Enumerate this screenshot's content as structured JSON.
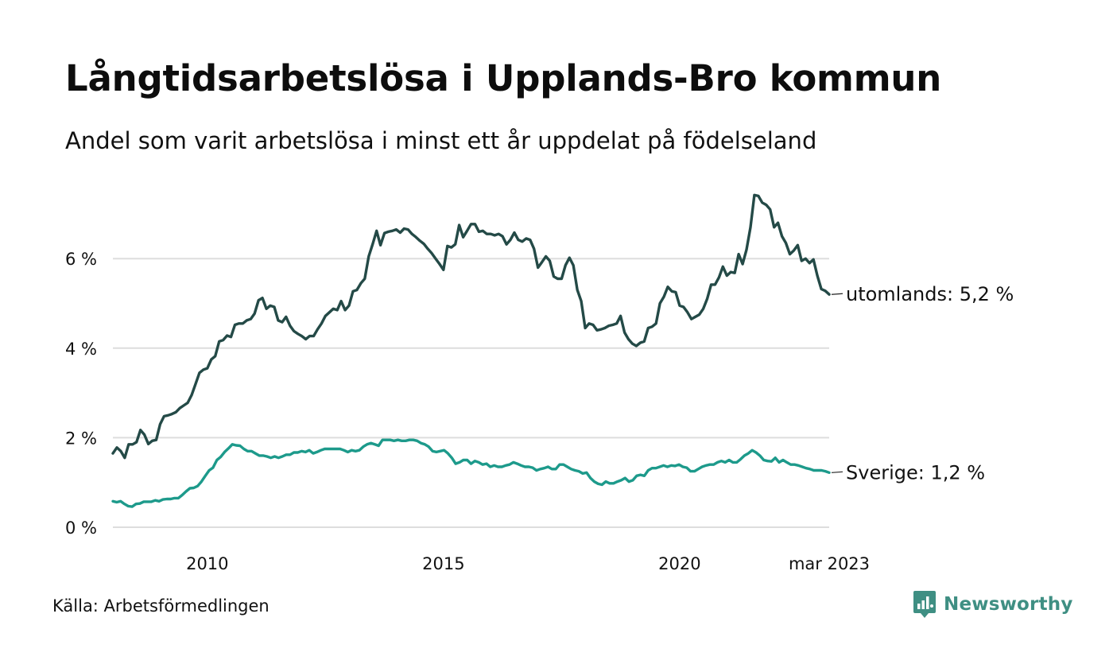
{
  "title": "Långtidsarbetslösa i Upplands-Bro kommun",
  "subtitle": "Andel som varit arbetslösa i minst ett år uppdelat på födelseland",
  "source": "Källa: Arbetsförmedlingen",
  "brand": {
    "name": "Newsworthy",
    "logo_icon": "bar-chart-speech-bubble-icon",
    "color": "#3f8f83"
  },
  "chart_data": {
    "type": "line",
    "title": "Långtidsarbetslösa i Upplands-Bro kommun",
    "subtitle": "Andel som varit arbetslösa i minst ett år uppdelat på födelseland",
    "ylabel": "",
    "xlabel": "",
    "ylim": [
      0,
      7.5
    ],
    "y_ticks": [
      0,
      2,
      4,
      6
    ],
    "y_tick_labels": [
      "0 %",
      "2 %",
      "4 %",
      "6 %"
    ],
    "x_start": 2008.0,
    "x_end": 2023.167,
    "x_ticks": [
      2010,
      2015,
      2020,
      2023.167
    ],
    "x_tick_labels": [
      "2010",
      "2015",
      "2020",
      "mar 2023"
    ],
    "grid": "horizontal",
    "legend": "end-of-line labels",
    "series": [
      {
        "name": "utomlands",
        "end_label": "utomlands: 5,2 %",
        "color": "#244a47",
        "values": [
          1.65,
          1.78,
          1.7,
          1.55,
          1.85,
          1.85,
          1.9,
          2.17,
          2.07,
          1.86,
          1.93,
          1.95,
          2.3,
          2.48,
          2.5,
          2.53,
          2.57,
          2.66,
          2.72,
          2.78,
          2.95,
          3.2,
          3.45,
          3.52,
          3.55,
          3.75,
          3.82,
          4.15,
          4.18,
          4.28,
          4.25,
          4.52,
          4.55,
          4.55,
          4.62,
          4.65,
          4.77,
          5.07,
          5.12,
          4.88,
          4.95,
          4.92,
          4.62,
          4.58,
          4.7,
          4.5,
          4.38,
          4.32,
          4.27,
          4.2,
          4.27,
          4.27,
          4.42,
          4.55,
          4.72,
          4.8,
          4.88,
          4.85,
          5.05,
          4.85,
          4.95,
          5.27,
          5.3,
          5.45,
          5.55,
          6.05,
          6.32,
          6.62,
          6.3,
          6.57,
          6.6,
          6.62,
          6.65,
          6.58,
          6.67,
          6.65,
          6.55,
          6.48,
          6.4,
          6.33,
          6.22,
          6.12,
          6.0,
          5.88,
          5.75,
          6.28,
          6.25,
          6.32,
          6.75,
          6.48,
          6.62,
          6.77,
          6.77,
          6.6,
          6.62,
          6.55,
          6.55,
          6.52,
          6.55,
          6.5,
          6.32,
          6.42,
          6.58,
          6.42,
          6.38,
          6.45,
          6.42,
          6.22,
          5.8,
          5.92,
          6.05,
          5.95,
          5.6,
          5.55,
          5.55,
          5.85,
          6.02,
          5.85,
          5.3,
          5.05,
          4.45,
          4.55,
          4.52,
          4.4,
          4.42,
          4.45,
          4.5,
          4.52,
          4.55,
          4.72,
          4.35,
          4.2,
          4.1,
          4.05,
          4.12,
          4.15,
          4.45,
          4.48,
          4.55,
          5.0,
          5.15,
          5.37,
          5.27,
          5.25,
          4.95,
          4.92,
          4.8,
          4.65,
          4.7,
          4.75,
          4.88,
          5.1,
          5.42,
          5.42,
          5.58,
          5.82,
          5.62,
          5.7,
          5.68,
          6.1,
          5.88,
          6.2,
          6.7,
          7.42,
          7.4,
          7.25,
          7.2,
          7.1,
          6.7,
          6.8,
          6.5,
          6.35,
          6.1,
          6.18,
          6.3,
          5.95,
          6.0,
          5.9,
          5.98,
          5.62,
          5.32,
          5.28,
          5.2
        ]
      },
      {
        "name": "Sverige",
        "end_label": "Sverige: 1,2 %",
        "color": "#1d9a8b",
        "values": [
          0.58,
          0.56,
          0.58,
          0.52,
          0.47,
          0.46,
          0.52,
          0.53,
          0.57,
          0.57,
          0.57,
          0.6,
          0.58,
          0.62,
          0.63,
          0.63,
          0.65,
          0.65,
          0.72,
          0.8,
          0.87,
          0.88,
          0.92,
          1.02,
          1.15,
          1.27,
          1.33,
          1.5,
          1.57,
          1.68,
          1.76,
          1.85,
          1.83,
          1.82,
          1.75,
          1.7,
          1.7,
          1.65,
          1.6,
          1.6,
          1.58,
          1.55,
          1.58,
          1.55,
          1.58,
          1.62,
          1.62,
          1.67,
          1.67,
          1.7,
          1.68,
          1.72,
          1.65,
          1.68,
          1.72,
          1.75,
          1.75,
          1.75,
          1.75,
          1.75,
          1.72,
          1.68,
          1.72,
          1.7,
          1.72,
          1.8,
          1.85,
          1.88,
          1.85,
          1.82,
          1.95,
          1.95,
          1.95,
          1.93,
          1.95,
          1.93,
          1.93,
          1.95,
          1.95,
          1.93,
          1.88,
          1.85,
          1.8,
          1.7,
          1.68,
          1.7,
          1.72,
          1.65,
          1.55,
          1.42,
          1.45,
          1.5,
          1.5,
          1.42,
          1.48,
          1.45,
          1.4,
          1.42,
          1.35,
          1.38,
          1.35,
          1.35,
          1.38,
          1.4,
          1.45,
          1.42,
          1.38,
          1.35,
          1.35,
          1.33,
          1.27,
          1.3,
          1.32,
          1.35,
          1.3,
          1.3,
          1.4,
          1.4,
          1.35,
          1.3,
          1.27,
          1.25,
          1.2,
          1.22,
          1.1,
          1.02,
          0.97,
          0.95,
          1.02,
          0.98,
          0.98,
          1.02,
          1.05,
          1.1,
          1.02,
          1.05,
          1.15,
          1.17,
          1.15,
          1.27,
          1.32,
          1.32,
          1.35,
          1.38,
          1.35,
          1.38,
          1.37,
          1.4,
          1.35,
          1.33,
          1.25,
          1.25,
          1.3,
          1.35,
          1.38,
          1.4,
          1.4,
          1.45,
          1.48,
          1.45,
          1.5,
          1.45,
          1.45,
          1.52,
          1.6,
          1.65,
          1.72,
          1.67,
          1.6,
          1.5,
          1.48,
          1.47,
          1.55,
          1.45,
          1.5,
          1.45,
          1.4,
          1.4,
          1.38,
          1.35,
          1.32,
          1.3,
          1.27,
          1.27,
          1.27,
          1.25,
          1.22
        ]
      }
    ]
  }
}
